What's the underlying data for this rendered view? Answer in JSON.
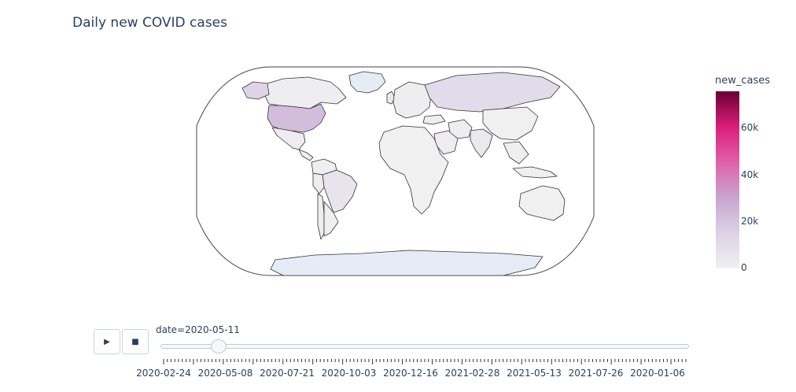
{
  "chart_data": {
    "type": "choropleth",
    "title": "Daily new COVID cases",
    "colorbar": {
      "title": "new_cases",
      "ticks": [
        "0",
        "20k",
        "40k",
        "60k"
      ],
      "tick_values": [
        0,
        20000,
        40000,
        60000
      ],
      "range": [
        0,
        76000
      ],
      "colorscale": [
        "#f0f0f0",
        "#dcd1e6",
        "#c8a5d0",
        "#e061a9",
        "#d91e7a",
        "#6a0033"
      ]
    },
    "current_frame": "2020-05-11",
    "regions": [
      {
        "name": "United States",
        "value": 22000
      },
      {
        "name": "Russia",
        "value": 10500
      },
      {
        "name": "Brazil",
        "value": 6000
      },
      {
        "name": "United Kingdom",
        "value": 3800
      },
      {
        "name": "India",
        "value": 3600
      },
      {
        "name": "Peru",
        "value": 2000
      },
      {
        "name": "Canada",
        "value": 1300
      },
      {
        "name": "Mexico",
        "value": 1800
      },
      {
        "name": "Chile",
        "value": 1200
      },
      {
        "name": "Saudi Arabia",
        "value": 1900
      },
      {
        "name": "Iran",
        "value": 1600
      },
      {
        "name": "Turkey",
        "value": 1100
      },
      {
        "name": "Australia",
        "value": 15
      },
      {
        "name": "China",
        "value": 20
      },
      {
        "name": "Greenland",
        "value": 0
      },
      {
        "name": "Antarctica",
        "value": 0
      }
    ]
  },
  "slider": {
    "current_label": "date=2020-05-11",
    "position_fraction": 0.11,
    "tick_labels": [
      "2020-02-24",
      "2020-05-08",
      "2020-07-21",
      "2020-10-03",
      "2020-12-16",
      "2021-02-28",
      "2021-05-13",
      "2021-07-26",
      "2020-01-06"
    ]
  },
  "controls": {
    "play_icon": "play-icon",
    "stop_icon": "stop-icon"
  }
}
